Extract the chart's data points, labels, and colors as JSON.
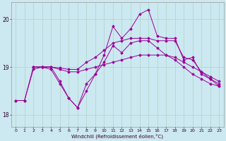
{
  "background_color": "#cce8f0",
  "grid_color": "#b0d8d0",
  "line_color": "#990099",
  "xlabel": "Windchill (Refroidissement éolien,°C)",
  "xlim": [
    -0.5,
    23.5
  ],
  "ylim": [
    17.75,
    20.35
  ],
  "yticks": [
    18,
    19,
    20
  ],
  "xticks": [
    0,
    1,
    2,
    3,
    4,
    5,
    6,
    7,
    8,
    9,
    10,
    11,
    12,
    13,
    14,
    15,
    16,
    17,
    18,
    19,
    20,
    21,
    22,
    23
  ],
  "series": [
    {
      "x": [
        0,
        1,
        2,
        3,
        4,
        5,
        6,
        7,
        8,
        9,
        10,
        11,
        12,
        13,
        14,
        15,
        16,
        17,
        18,
        19,
        20,
        21,
        22,
        23
      ],
      "y": [
        18.3,
        18.3,
        18.95,
        19.0,
        18.95,
        18.65,
        18.35,
        18.15,
        18.5,
        18.85,
        19.1,
        19.45,
        19.3,
        19.5,
        19.55,
        19.55,
        19.4,
        19.25,
        19.15,
        19.0,
        18.85,
        18.75,
        18.65,
        18.6
      ]
    },
    {
      "x": [
        0,
        1,
        2,
        3,
        4,
        5,
        6,
        7,
        8,
        9,
        10,
        11,
        12,
        13,
        14,
        15,
        16,
        17,
        18,
        19,
        20,
        21,
        22,
        23
      ],
      "y": [
        18.3,
        18.3,
        19.0,
        19.0,
        19.0,
        18.95,
        18.9,
        18.9,
        18.95,
        19.0,
        19.05,
        19.1,
        19.15,
        19.2,
        19.25,
        19.25,
        19.25,
        19.25,
        19.2,
        19.1,
        19.0,
        18.9,
        18.8,
        18.7
      ]
    },
    {
      "x": [
        2,
        3,
        4,
        5,
        6,
        7,
        8,
        9,
        10,
        11,
        12,
        13,
        14,
        15,
        16,
        17,
        18,
        19,
        20,
        21,
        22,
        23
      ],
      "y": [
        19.0,
        19.0,
        19.0,
        18.7,
        18.35,
        18.15,
        18.65,
        18.85,
        19.25,
        19.85,
        19.6,
        19.8,
        20.1,
        20.2,
        19.65,
        19.6,
        19.6,
        19.15,
        19.2,
        18.85,
        18.75,
        18.6
      ]
    },
    {
      "x": [
        2,
        3,
        4,
        5,
        6,
        7,
        8,
        9,
        10,
        11,
        12,
        13,
        14,
        15,
        16,
        17,
        18,
        19,
        20,
        21,
        22,
        23
      ],
      "y": [
        19.0,
        19.0,
        19.0,
        18.98,
        18.95,
        18.95,
        19.1,
        19.2,
        19.35,
        19.5,
        19.55,
        19.6,
        19.6,
        19.6,
        19.55,
        19.55,
        19.55,
        19.2,
        19.15,
        18.9,
        18.75,
        18.65
      ]
    }
  ]
}
